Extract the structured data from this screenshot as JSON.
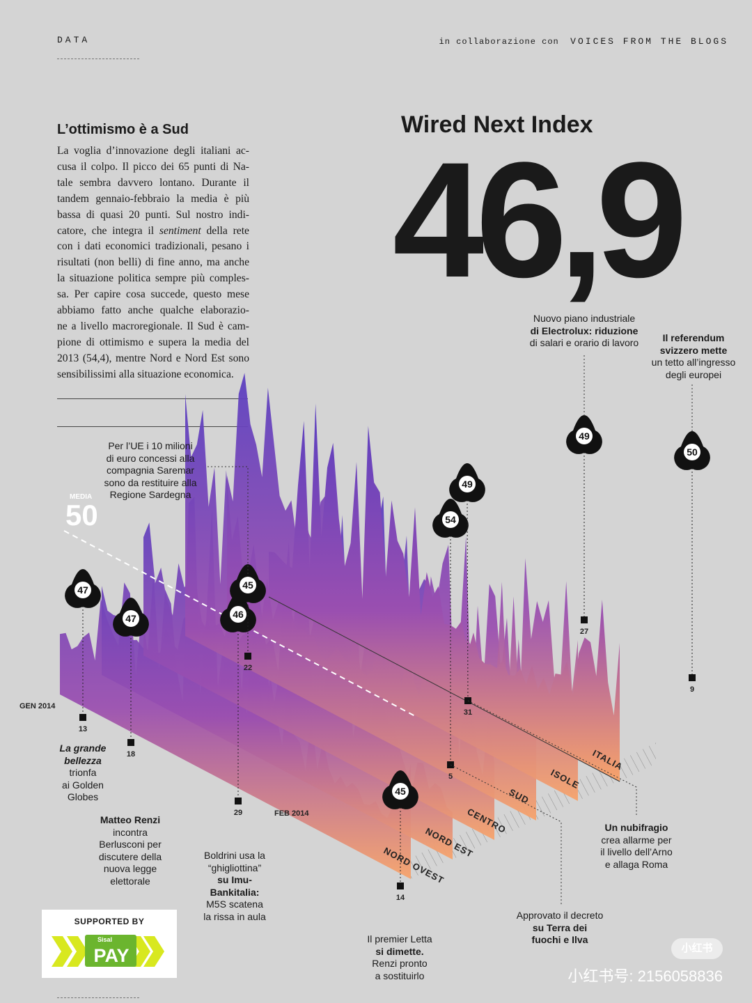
{
  "header": {
    "section": "DATA",
    "collab_prefix": "in collaborazione con",
    "collab_partner": "VOICES FROM THE BLOGS"
  },
  "article": {
    "title": "L’ottimismo è a Sud",
    "lines": [
      "La voglia d’innovazione degli italiani ac-",
      "cusa il colpo. Il picco dei 65 punti di Na-",
      "tale sembra davvero lontano. Durante il",
      "tandem gennaio-febbraio la media è più",
      "bassa di quasi 20 punti. Sul nostro indi-",
      "catore, che integra il sentiment della rete",
      "con i dati economici tradizionali, pesano i",
      "risultati (non belli) di fine anno, ma anche",
      "la situazione politica sempre più comples-",
      "sa. Per capire cosa succede, questo mese",
      "abbiamo fatto anche qualche elaborazio-",
      "ne a livello macroregionale. Il Sud è cam-",
      "pione di ottimismo e supera la media del",
      "2013 (54,4), mentre Nord e Nord Est sono",
      "sensibilissimi alla situazione economica."
    ]
  },
  "index": {
    "title": "Wired Next Index",
    "value": "46,9"
  },
  "chart_data": {
    "type": "area",
    "style": "3d ridge plot, purple-to-orange gradient, one ridge per macroregion",
    "series_names": [
      "ITALIA",
      "ISOLE",
      "SUD",
      "CENTRO",
      "NORD EST",
      "NORD OVEST"
    ],
    "period_labels": [
      "GEN 2014",
      "FEB 2014"
    ],
    "media": {
      "label": "MEDIA",
      "value": 50
    },
    "markers": [
      {
        "value": 47,
        "day": "13"
      },
      {
        "value": 47,
        "day": "18"
      },
      {
        "value": 46,
        "day": "29"
      },
      {
        "value": 45,
        "day": "22"
      },
      {
        "value": 45,
        "day": "14"
      },
      {
        "value": 54,
        "day": "5"
      },
      {
        "value": 49,
        "day": "31"
      },
      {
        "value": 49,
        "day": "27"
      },
      {
        "value": 50,
        "day": "9"
      }
    ]
  },
  "annotations": {
    "golden": [
      "La grande",
      "bellezza",
      "trionfa",
      "ai Golden",
      "Globes"
    ],
    "renzi": [
      "Matteo Renzi",
      "incontra",
      "Berlusconi per",
      "discutere della",
      "nuova legge",
      "elettorale"
    ],
    "boldrini": [
      "Boldrini usa la",
      "“ghigliottina”",
      "su Imu-",
      "Bankitalia:",
      "M5S scatena",
      "la rissa in aula"
    ],
    "saremar": [
      "Per l’UE i 10 milioni",
      "di euro concessi alla",
      "compagnia Saremar",
      "sono da restituire alla",
      "Regione Sardegna"
    ],
    "letta": [
      "Il premier Letta",
      "si dimette.",
      "Renzi pronto",
      "a sostituirlo"
    ],
    "terra": [
      "Approvato il decreto",
      "su Terra dei",
      "fuochi e Ilva"
    ],
    "nubifragio": [
      "Un nubifragio",
      "crea allarme per",
      "il livello dell’Arno",
      "e allaga Roma"
    ],
    "electrolux": [
      "Nuovo piano industriale",
      "di Electrolux: riduzione",
      "di salari e orario di lavoro"
    ],
    "referendum": [
      "Il referendum",
      "svizzero mette",
      "un tetto all’ingresso",
      "degli europei"
    ]
  },
  "sponsor": {
    "label": "SUPPORTED BY",
    "brand_small": "Sisal",
    "brand": "PAY"
  },
  "watermark": {
    "badge": "小红书",
    "id": "小红书号: 2156058836"
  },
  "colors": {
    "background": "#d4d4d4",
    "ridge_top": "#5a3fc0",
    "ridge_mid": "#9a4fb0",
    "ridge_bottom": "#f7a36a",
    "sponsor_yellow": "#d8e81f",
    "sponsor_green": "#6bb52e"
  }
}
